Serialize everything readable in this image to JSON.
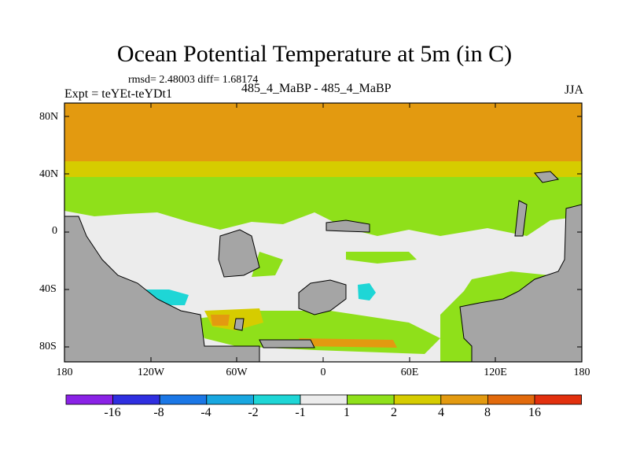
{
  "title": "Ocean Potential Temperature at 5m (in C)",
  "stats": "rmsd= 2.48003 diff= 1.68174",
  "expt": "Expt = teYEt-teYDt1",
  "case_label": "485_4_MaBP - 485_4_MaBP",
  "season": "JJA",
  "y_ticks": [
    "80N",
    "40N",
    "0",
    "40S",
    "80S"
  ],
  "x_ticks": [
    "180",
    "120W",
    "60W",
    "0",
    "60E",
    "120E",
    "180"
  ],
  "colorbar": {
    "colors": [
      "#8a22e6",
      "#2f2fe0",
      "#1b77e6",
      "#18a7e0",
      "#1ed6d6",
      "#ececec",
      "#8fe01a",
      "#d6cc00",
      "#e39a10",
      "#e26a0c",
      "#e2300e"
    ],
    "labels": [
      "-16",
      "-8",
      "-4",
      "-2",
      "-1",
      "1",
      "2",
      "4",
      "8",
      "16"
    ]
  },
  "legend_colors": {
    "land": "#a5a5a5",
    "band_low": "#e39a10",
    "band_mid": "#d6cc00",
    "band_green": "#8fe01a",
    "neutral": "#ececec",
    "cyan": "#1ed6d6"
  }
}
